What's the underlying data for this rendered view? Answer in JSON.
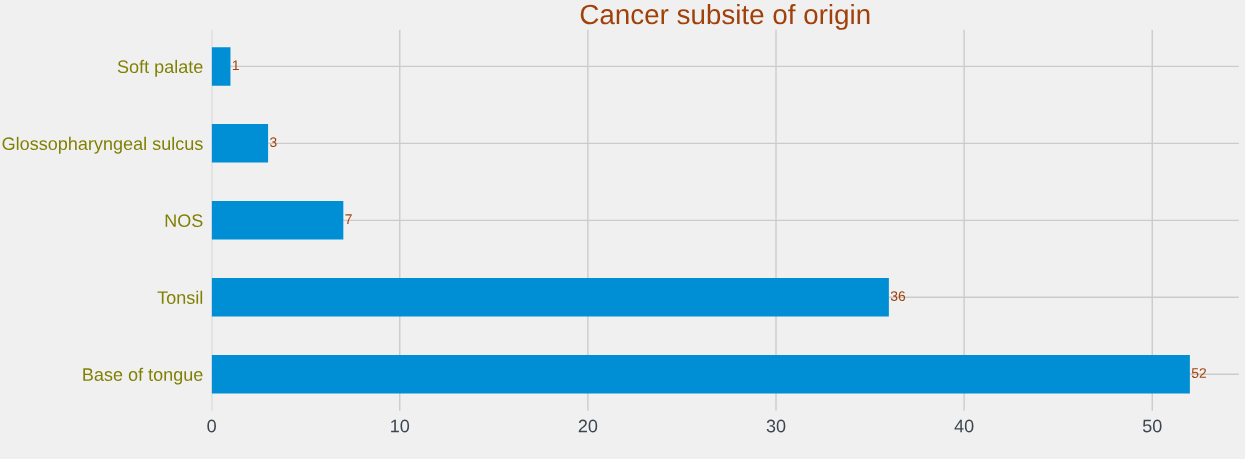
{
  "chart_data": {
    "type": "bar",
    "orientation": "horizontal",
    "title": "Cancer subsite of origin",
    "categories": [
      "Soft palate",
      "Glossopharyngeal sulcus",
      "NOS",
      "Tonsil",
      "Base of tongue"
    ],
    "values": [
      1,
      3,
      7,
      36,
      52
    ],
    "color": "#008fd5",
    "xlim": [
      0,
      54.6
    ],
    "xticks": [
      0,
      10,
      20,
      30,
      40,
      50
    ],
    "grid": true,
    "data_labels": true
  }
}
